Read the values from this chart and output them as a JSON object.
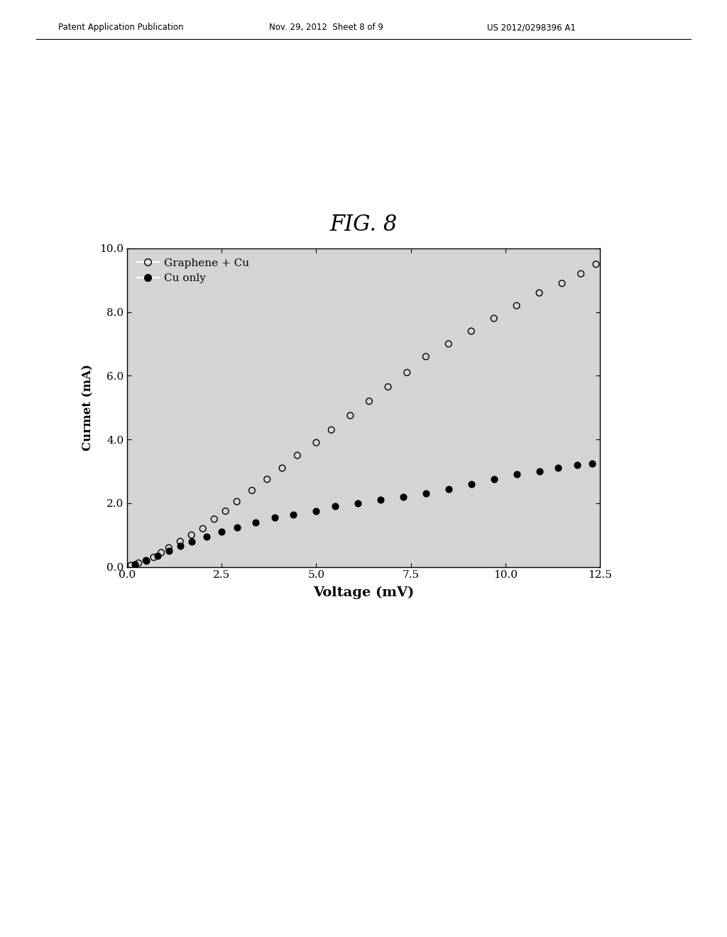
{
  "title": "FIG. 8",
  "xlabel": "Voltage (mV)",
  "ylabel": "Curmet (mA)",
  "xlim": [
    0.0,
    12.5
  ],
  "ylim": [
    0.0,
    10.0
  ],
  "xticks": [
    0.0,
    2.5,
    5.0,
    7.5,
    10.0,
    12.5
  ],
  "yticks": [
    0.0,
    2.0,
    4.0,
    6.0,
    8.0,
    10.0
  ],
  "graphene_cu_x": [
    0.1,
    0.3,
    0.5,
    0.7,
    0.9,
    1.1,
    1.4,
    1.7,
    2.0,
    2.3,
    2.6,
    2.9,
    3.3,
    3.7,
    4.1,
    4.5,
    5.0,
    5.4,
    5.9,
    6.4,
    6.9,
    7.4,
    7.9,
    8.5,
    9.1,
    9.7,
    10.3,
    10.9,
    11.5,
    12.0,
    12.4
  ],
  "graphene_cu_y": [
    0.05,
    0.12,
    0.2,
    0.3,
    0.45,
    0.6,
    0.8,
    1.0,
    1.2,
    1.5,
    1.75,
    2.05,
    2.4,
    2.75,
    3.1,
    3.5,
    3.9,
    4.3,
    4.75,
    5.2,
    5.65,
    6.1,
    6.6,
    7.0,
    7.4,
    7.8,
    8.2,
    8.6,
    8.9,
    9.2,
    9.5
  ],
  "cu_only_x": [
    0.2,
    0.5,
    0.8,
    1.1,
    1.4,
    1.7,
    2.1,
    2.5,
    2.9,
    3.4,
    3.9,
    4.4,
    5.0,
    5.5,
    6.1,
    6.7,
    7.3,
    7.9,
    8.5,
    9.1,
    9.7,
    10.3,
    10.9,
    11.4,
    11.9,
    12.3
  ],
  "cu_only_y": [
    0.08,
    0.2,
    0.35,
    0.5,
    0.65,
    0.8,
    0.95,
    1.1,
    1.25,
    1.4,
    1.55,
    1.65,
    1.75,
    1.9,
    2.0,
    2.1,
    2.2,
    2.3,
    2.45,
    2.6,
    2.75,
    2.9,
    3.0,
    3.1,
    3.2,
    3.25
  ],
  "header_left": "Patent Application Publication",
  "header_center": "Nov. 29, 2012  Sheet 8 of 9",
  "header_right": "US 2012/0298396 A1",
  "page_color": "#ffffff",
  "plot_bg_color": "#d4d4d4"
}
